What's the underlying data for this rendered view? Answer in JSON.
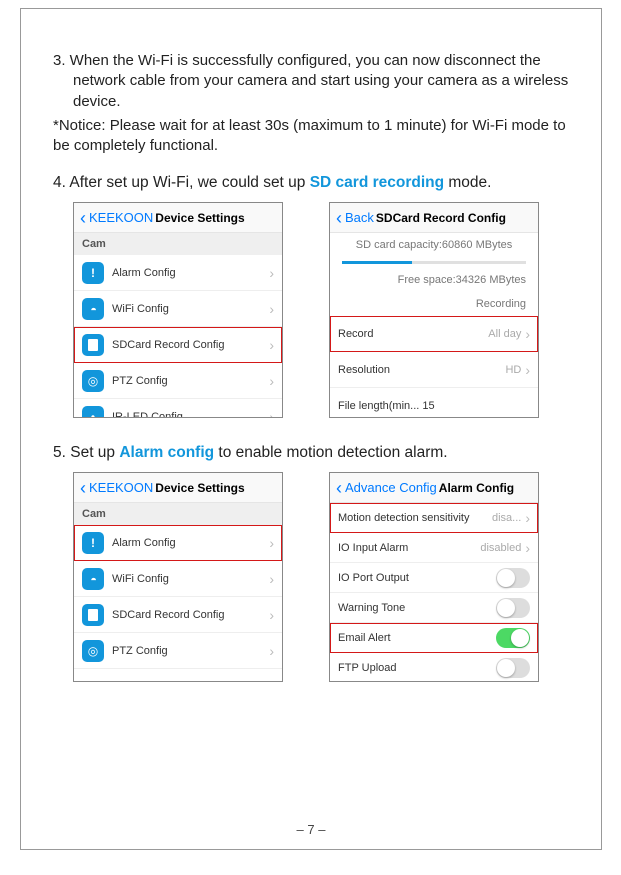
{
  "step3": {
    "text": "3. When the Wi-Fi is successfully configured, you can now disconnect the network cable from your camera and start using your camera as a wireless device."
  },
  "notice": "*Notice: Please wait for at least 30s (maximum to 1 minute) for Wi-Fi mode to be completely functional.",
  "step4": {
    "pre": "4. After set up Wi-Fi, we could set up ",
    "highlight": "SD card recording",
    "post": " mode."
  },
  "step5": {
    "pre": "5. Set up ",
    "highlight": "Alarm config",
    "post": " to enable motion detection alarm."
  },
  "screenshot_a": {
    "back": "KEEKOON",
    "title": "Device Settings",
    "section": "Cam",
    "rows": [
      {
        "icon": "alert",
        "label": "Alarm Config",
        "hl": false
      },
      {
        "icon": "wifi",
        "label": "WiFi Config",
        "hl": false
      },
      {
        "icon": "sd",
        "label": "SDCard Record Config",
        "hl": true
      },
      {
        "icon": "ptz",
        "label": "PTZ Config",
        "hl": false
      },
      {
        "icon": "ir",
        "label": "IR-LED Config",
        "hl": false
      }
    ]
  },
  "screenshot_b": {
    "back": "Back",
    "title": "SDCard Record Config",
    "capacity": "SD card capacity:60860 MBytes",
    "free": "Free space:34326 MBytes",
    "status": "Recording",
    "rows": [
      {
        "label": "Record",
        "value": "All day",
        "hl": true
      },
      {
        "label": "Resolution",
        "value": "HD",
        "hl": false
      }
    ],
    "file_length": "File length(min... 15"
  },
  "screenshot_c": {
    "back": "KEEKOON",
    "title": "Device Settings",
    "section": "Cam",
    "rows": [
      {
        "icon": "alert",
        "label": "Alarm Config",
        "hl": true
      },
      {
        "icon": "wifi",
        "label": "WiFi Config",
        "hl": false
      },
      {
        "icon": "sd",
        "label": "SDCard Record Config",
        "hl": false
      },
      {
        "icon": "ptz",
        "label": "PTZ Config",
        "hl": false
      }
    ]
  },
  "screenshot_d": {
    "back": "Advance Config",
    "title": "Alarm Config",
    "rows": [
      {
        "label": "Motion detection sensitivity",
        "value": "disa...",
        "hl": true,
        "type": "chev"
      },
      {
        "label": "IO Input Alarm",
        "value": "disabled",
        "hl": false,
        "type": "chev"
      },
      {
        "label": "IO Port Output",
        "hl": false,
        "type": "toggle",
        "on": false
      },
      {
        "label": "Warning Tone",
        "hl": false,
        "type": "toggle",
        "on": false
      },
      {
        "label": "Email Alert",
        "hl": true,
        "type": "toggle",
        "on": true
      },
      {
        "label": "FTP Upload",
        "hl": false,
        "type": "toggle",
        "on": false
      }
    ]
  },
  "page_number": "– 7 –",
  "colors": {
    "highlight": "#1296db",
    "redbox": "#d41818"
  }
}
